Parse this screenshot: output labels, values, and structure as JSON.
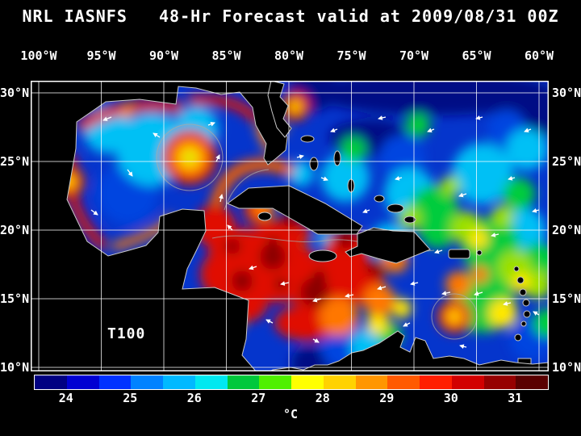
{
  "title": "NRL IASNFS   48-Hr Forecast valid at 2009/08/31 00Z",
  "map": {
    "annotation": "T100",
    "lon_labels": [
      "100°W",
      "95°W",
      "90°W",
      "85°W",
      "80°W",
      "75°W",
      "70°W",
      "65°W",
      "60°W"
    ],
    "lat_labels": [
      "30°N",
      "25°N",
      "20°N",
      "15°N",
      "10°N"
    ]
  },
  "colorbar": {
    "unit": "°C",
    "ticks": [
      "24",
      "25",
      "26",
      "27",
      "28",
      "29",
      "30",
      "31"
    ],
    "colors": [
      "#000082",
      "#0000d2",
      "#0032ff",
      "#0082ff",
      "#00b9ff",
      "#00e8f0",
      "#00c83c",
      "#50f000",
      "#ffff00",
      "#ffd200",
      "#ff9600",
      "#ff5a00",
      "#ff1e00",
      "#d20000",
      "#960000",
      "#5a0000"
    ]
  }
}
